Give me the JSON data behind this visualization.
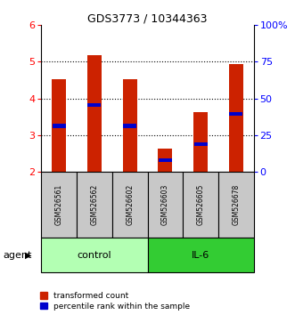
{
  "title": "GDS3773 / 10344363",
  "samples": [
    "GSM526561",
    "GSM526562",
    "GSM526602",
    "GSM526603",
    "GSM526605",
    "GSM526678"
  ],
  "groups": [
    "control",
    "control",
    "control",
    "IL-6",
    "IL-6",
    "IL-6"
  ],
  "group_labels": [
    "control",
    "IL-6"
  ],
  "transformed_counts": [
    4.52,
    5.18,
    4.52,
    2.62,
    3.62,
    4.95
  ],
  "percentile_values": [
    3.25,
    3.82,
    3.25,
    2.32,
    2.75,
    3.58
  ],
  "ylim": [
    2.0,
    6.0
  ],
  "y_left_ticks": [
    2,
    3,
    4,
    5,
    6
  ],
  "y_right_ticks": [
    0,
    25,
    50,
    75,
    100
  ],
  "bar_color": "#cc2200",
  "percentile_color": "#0000cc",
  "control_color": "#b3ffb3",
  "il6_color": "#33cc33",
  "bar_width": 0.4,
  "sample_bg": "#c8c8c8"
}
